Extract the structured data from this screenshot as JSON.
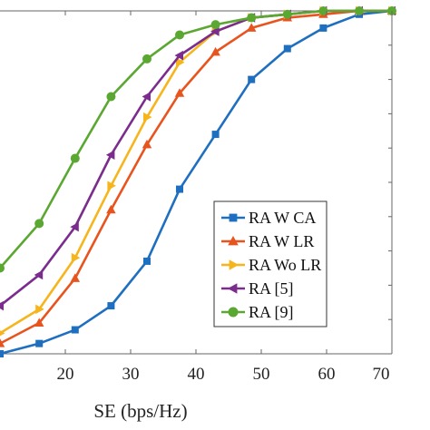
{
  "chart_data": {
    "type": "line",
    "title": "",
    "xlabel": "SE (bps/Hz)",
    "ylabel": "",
    "xlim": [
      10,
      70
    ],
    "ylim": [
      0,
      1
    ],
    "xticks": [
      20,
      30,
      40,
      50,
      60,
      70
    ],
    "grid": false,
    "legend_position": "lower-right",
    "series": [
      {
        "name": "RA W CA",
        "color": "#1f6fc0",
        "marker": "square",
        "x": [
          10.0,
          16.0,
          21.5,
          27.0,
          32.5,
          37.5,
          43.0,
          48.5,
          54.0,
          59.5,
          65.0,
          70.0
        ],
        "y": [
          0.0,
          0.03,
          0.07,
          0.14,
          0.27,
          0.48,
          0.64,
          0.8,
          0.89,
          0.95,
          0.99,
          1.0
        ]
      },
      {
        "name": "RA W LR",
        "color": "#e8541e",
        "marker": "triangle-up",
        "x": [
          10.0,
          16.0,
          21.5,
          27.0,
          32.5,
          37.5,
          43.0,
          48.5,
          54.0,
          59.5,
          65.0,
          70.0
        ],
        "y": [
          0.03,
          0.09,
          0.22,
          0.42,
          0.61,
          0.76,
          0.88,
          0.95,
          0.98,
          0.99,
          1.0,
          1.0
        ]
      },
      {
        "name": "RA Wo LR",
        "color": "#f6b51c",
        "marker": "triangle-right",
        "x": [
          10.0,
          16.0,
          21.5,
          27.0,
          32.5,
          37.5,
          43.0,
          48.5,
          54.0,
          59.5,
          65.0,
          70.0
        ],
        "y": [
          0.06,
          0.13,
          0.28,
          0.49,
          0.69,
          0.85,
          0.94,
          0.98,
          0.99,
          1.0,
          1.0,
          1.0
        ]
      },
      {
        "name": "RA [5]",
        "color": "#7b2d8e",
        "marker": "triangle-left",
        "x": [
          10.0,
          16.0,
          21.5,
          27.0,
          32.5,
          37.5,
          43.0,
          48.5,
          54.0,
          59.5,
          65.0,
          70.0
        ],
        "y": [
          0.14,
          0.23,
          0.37,
          0.58,
          0.75,
          0.87,
          0.94,
          0.98,
          0.99,
          1.0,
          1.0,
          1.0
        ]
      },
      {
        "name": "RA [9]",
        "color": "#5aa832",
        "marker": "circle",
        "x": [
          10.0,
          16.0,
          21.5,
          27.0,
          32.5,
          37.5,
          43.0,
          48.5,
          54.0,
          59.5,
          65.0,
          70.0
        ],
        "y": [
          0.25,
          0.38,
          0.57,
          0.75,
          0.86,
          0.93,
          0.96,
          0.98,
          0.99,
          1.0,
          1.0,
          1.0
        ]
      }
    ]
  }
}
